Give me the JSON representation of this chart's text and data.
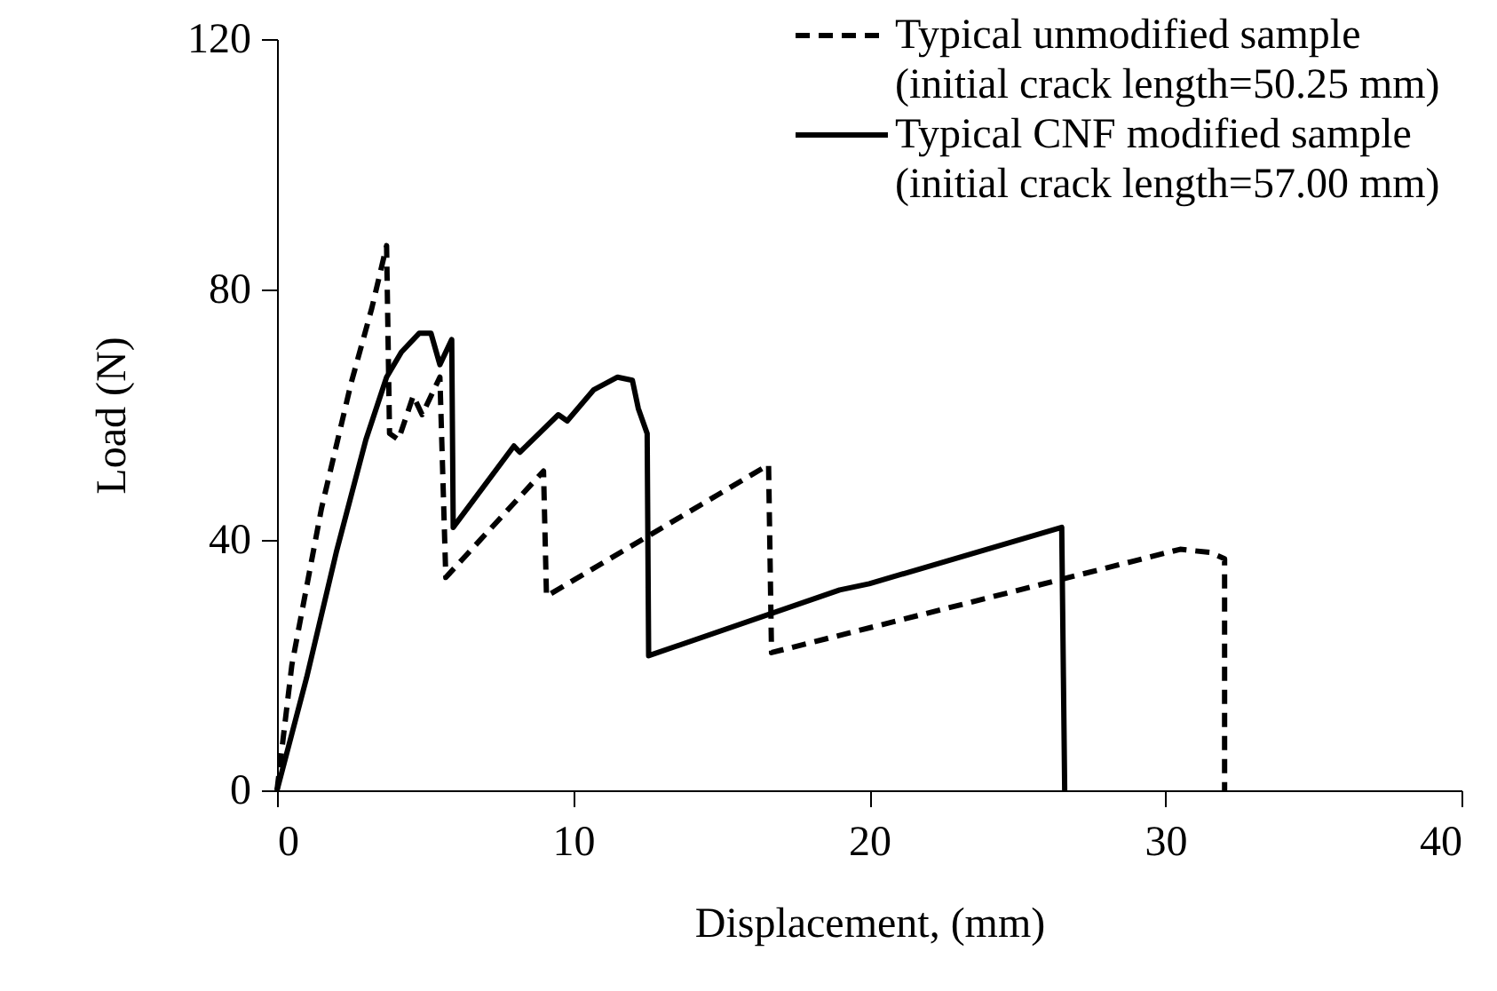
{
  "chart_data": {
    "type": "line",
    "xlabel": "Displacement, (mm)",
    "ylabel": "Load (N)",
    "xlim": [
      0,
      40
    ],
    "xticks": [
      0,
      10,
      20,
      30,
      40
    ],
    "ylim": [
      0,
      120
    ],
    "yticks": [
      0,
      40,
      80,
      120
    ],
    "grid": false,
    "legend": "top right",
    "marker": "none",
    "series": [
      {
        "name": "Typical unmodified sample\n(initial crack length=50.25 mm)",
        "color": "#000000",
        "line_style": "dashed",
        "x": [
          0,
          0.5,
          1.5,
          2.5,
          3.2,
          3.7,
          3.8,
          4.1,
          4.6,
          4.9,
          5.5,
          5.7,
          9.0,
          9.1,
          16.6,
          16.7,
          30.5,
          31.5,
          32.0,
          32.0
        ],
        "values": [
          0,
          20,
          45,
          65,
          77,
          87,
          57,
          56,
          63,
          60,
          66,
          34,
          51,
          31,
          52,
          22,
          38.5,
          38,
          37,
          0
        ]
      },
      {
        "name": "Typical CNF modified sample\n(initial crack length=57.00 mm)",
        "color": "#000000",
        "line_style": "solid",
        "x": [
          0,
          1,
          2,
          3,
          3.7,
          4.2,
          4.8,
          5.2,
          5.5,
          5.9,
          5.95,
          8.0,
          8.2,
          9.5,
          9.8,
          10.7,
          11.5,
          12.0,
          12.2,
          12.5,
          12.55,
          19.0,
          20.0,
          26.5,
          26.6
        ],
        "values": [
          0,
          18,
          38,
          56,
          66,
          70,
          73,
          73,
          68,
          72,
          42,
          55,
          54,
          60,
          59,
          64,
          66,
          65.5,
          61,
          57,
          21.5,
          32,
          33,
          42,
          0
        ]
      }
    ]
  }
}
